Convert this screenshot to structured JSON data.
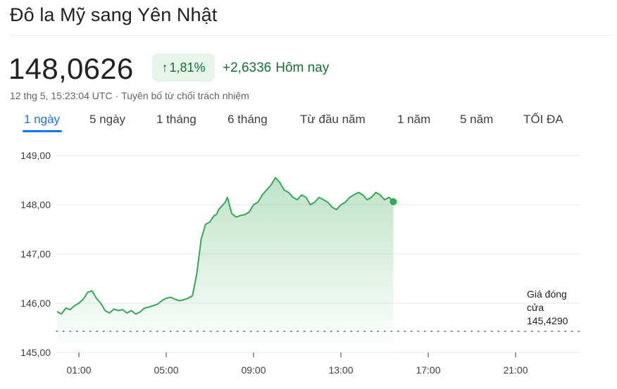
{
  "title": "Đô la Mỹ sang Yên Nhật",
  "price": "148,0626",
  "change_percent": "1,81%",
  "change_arrow_icon": "arrow-up-icon",
  "change_value": "+2,6336",
  "change_period": "Hôm nay",
  "timestamp": "12 thg 5, 15:23:04 UTC",
  "separator": "·",
  "disclaimer": "Tuyên bố từ chối trách nhiệm",
  "tabs": [
    {
      "label": "1 ngày",
      "active": true
    },
    {
      "label": "5 ngày",
      "active": false
    },
    {
      "label": "1 tháng",
      "active": false
    },
    {
      "label": "6 tháng",
      "active": false
    },
    {
      "label": "Từ đầu năm",
      "active": false
    },
    {
      "label": "1 năm",
      "active": false
    },
    {
      "label": "5 năm",
      "active": false
    },
    {
      "label": "TỐI ĐA",
      "active": false
    }
  ],
  "previous_close": {
    "label_line1": "Giá đóng",
    "label_line2": "cửa",
    "value": "145,4290"
  },
  "colors": {
    "positive": "#137333",
    "line": "#34a853",
    "accent": "#1a73e8",
    "badge_bg": "#e6f4ea"
  },
  "chart_data": {
    "type": "line",
    "ylim": [
      145.0,
      149.0
    ],
    "yticks": [
      149.0,
      148.0,
      147.0,
      146.0,
      145.0
    ],
    "ytick_labels": [
      "149,00",
      "148,00",
      "147,00",
      "146,00",
      "145,00"
    ],
    "xlim_hours": [
      0.0,
      24.0
    ],
    "xticks_hours": [
      1,
      5,
      9,
      13,
      17,
      21
    ],
    "xtick_labels": [
      "01:00",
      "05:00",
      "09:00",
      "13:00",
      "17:00",
      "21:00"
    ],
    "previous_close_value": 145.429,
    "grid": true,
    "series": [
      {
        "x_hours": [
          0.0,
          0.2,
          0.4,
          0.6,
          0.8,
          1.0,
          1.2,
          1.4,
          1.6,
          1.8,
          2.0,
          2.2,
          2.4,
          2.6,
          2.8,
          3.0,
          3.2,
          3.4,
          3.6,
          3.8,
          4.0,
          4.2,
          4.4,
          4.6,
          4.8,
          5.0,
          5.2,
          5.4,
          5.6,
          5.8,
          6.0,
          6.2,
          6.4,
          6.6,
          6.8,
          7.0,
          7.1,
          7.2,
          7.3,
          7.4,
          7.5,
          7.6,
          7.7,
          7.8,
          8.0,
          8.2,
          8.4,
          8.6,
          8.8,
          9.0,
          9.2,
          9.4,
          9.6,
          9.8,
          10.0,
          10.2,
          10.4,
          10.6,
          10.8,
          11.0,
          11.2,
          11.4,
          11.6,
          11.8,
          12.0,
          12.2,
          12.4,
          12.6,
          12.8,
          13.0,
          13.2,
          13.4,
          13.6,
          13.8,
          14.0,
          14.2,
          14.4,
          14.6,
          14.8,
          15.0,
          15.2,
          15.4
        ],
        "y": [
          145.83,
          145.78,
          145.9,
          145.87,
          145.95,
          146.0,
          146.08,
          146.22,
          146.25,
          146.1,
          146.0,
          145.85,
          145.8,
          145.88,
          145.85,
          145.87,
          145.8,
          145.85,
          145.78,
          145.82,
          145.9,
          145.92,
          145.95,
          145.98,
          146.05,
          146.1,
          146.12,
          146.08,
          146.05,
          146.07,
          146.1,
          146.15,
          146.6,
          147.3,
          147.6,
          147.65,
          147.72,
          147.78,
          147.8,
          147.9,
          147.95,
          148.0,
          148.05,
          148.15,
          147.82,
          147.75,
          147.78,
          147.8,
          147.85,
          148.0,
          148.05,
          148.2,
          148.3,
          148.4,
          148.55,
          148.45,
          148.3,
          148.25,
          148.15,
          148.1,
          148.2,
          148.15,
          148.0,
          148.05,
          148.15,
          148.1,
          148.05,
          147.95,
          147.9,
          148.0,
          148.05,
          148.15,
          148.2,
          148.25,
          148.2,
          148.1,
          148.15,
          148.25,
          148.2,
          148.1,
          148.15,
          148.06
        ]
      }
    ]
  }
}
